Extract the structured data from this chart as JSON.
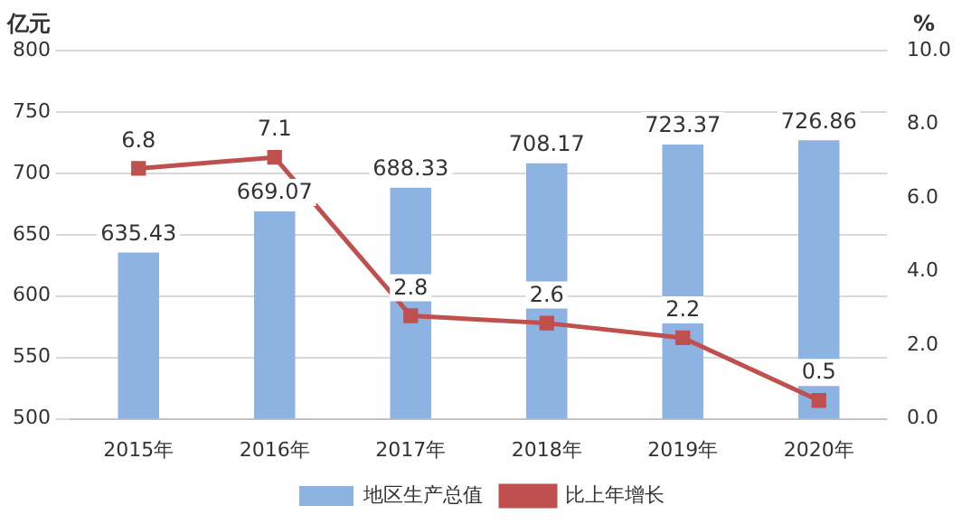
{
  "chart_data": {
    "type": "bar",
    "ylabel": "亿元",
    "y2label": "%",
    "categories": [
      "2015年",
      "2016年",
      "2017年",
      "2018年",
      "2019年",
      "2020年"
    ],
    "series": [
      {
        "name": "地区生产总值",
        "color": "#8db3e2",
        "values": [
          635.43,
          669.07,
          688.33,
          708.17,
          723.37,
          726.86
        ]
      },
      {
        "name": "比上年增长",
        "type": "line",
        "axis": "y2",
        "color": "#c0504d",
        "marker": "square",
        "values": [
          6.8,
          7.1,
          2.8,
          2.6,
          2.2,
          0.5
        ]
      }
    ],
    "ylim": [
      500,
      800
    ],
    "yticks": [
      500,
      550,
      600,
      650,
      700,
      750,
      800
    ],
    "y2lim": [
      0,
      10
    ],
    "y2ticks": [
      {
        "value": 0,
        "label": "0.0"
      },
      {
        "value": 2,
        "label": "2.0"
      },
      {
        "value": 4,
        "label": "4.0"
      },
      {
        "value": 6,
        "label": "6.0"
      },
      {
        "value": 8,
        "label": "8.0"
      },
      {
        "value": 10,
        "label": "10.0"
      }
    ],
    "grid": "y",
    "legend": "bottom",
    "data_labels": true
  }
}
